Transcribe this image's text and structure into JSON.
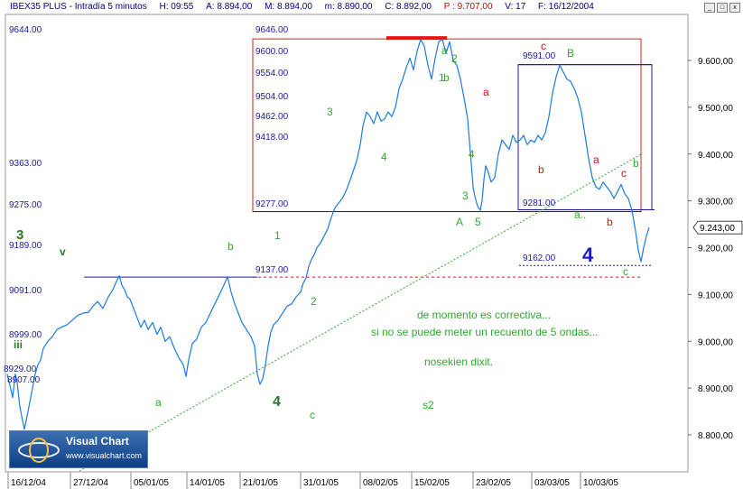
{
  "header": {
    "symbol": "IBEX35 PLUS - Intradía 5 minutos",
    "h": "H: 09:55",
    "a": "A: 8.894,00",
    "m": "M: 8.894,00",
    "mn": "m: 8.890,00",
    "c": "C: 8.892,00",
    "p": "P : 9.707,00",
    "v": "V: 17",
    "f": "F: 16/12/2004"
  },
  "window_buttons": [
    "_",
    "□",
    "x"
  ],
  "logo": {
    "title": "Visual Chart",
    "url": "www.visualchart.com"
  },
  "chart_data": {
    "type": "line",
    "y_ticks": [
      "9.600,00",
      "9.500,00",
      "9.400,00",
      "9.300,00",
      "9.200,00",
      "9.100,00",
      "9.000,00",
      "8.900,00",
      "8.800,00"
    ],
    "x_labels": [
      "16/12/04",
      "27/12/04",
      "05/01/05",
      "14/01/05",
      "21/01/05",
      "31/01/05",
      "08/02/05",
      "15/02/05",
      "23/02/05",
      "03/03/05",
      "10/03/05"
    ],
    "last_price": "9.243,00",
    "ylim": [
      8730,
      9690
    ],
    "series": [
      {
        "color": "#1c7ae0",
        "values": [
          [
            0,
            8930
          ],
          [
            3,
            8905
          ],
          [
            6,
            8880
          ],
          [
            9,
            8930
          ],
          [
            11,
            8912
          ],
          [
            14,
            8860
          ],
          [
            17,
            8830
          ],
          [
            19,
            8812
          ],
          [
            22,
            8840
          ],
          [
            25,
            8870
          ],
          [
            28,
            8900
          ],
          [
            31,
            8930
          ],
          [
            34,
            8950
          ],
          [
            37,
            8960
          ],
          [
            40,
            8985
          ],
          [
            45,
            9000
          ],
          [
            50,
            9010
          ],
          [
            55,
            9025
          ],
          [
            60,
            9030
          ],
          [
            66,
            9035
          ],
          [
            72,
            9045
          ],
          [
            78,
            9055
          ],
          [
            84,
            9060
          ],
          [
            90,
            9062
          ],
          [
            95,
            9075
          ],
          [
            100,
            9085
          ],
          [
            106,
            9070
          ],
          [
            112,
            9095
          ],
          [
            117,
            9110
          ],
          [
            121,
            9128
          ],
          [
            124,
            9140
          ],
          [
            127,
            9120
          ],
          [
            130,
            9110
          ],
          [
            133,
            9095
          ],
          [
            136,
            9090
          ],
          [
            140,
            9070
          ],
          [
            144,
            9050
          ],
          [
            148,
            9030
          ],
          [
            152,
            9045
          ],
          [
            156,
            9025
          ],
          [
            161,
            9040
          ],
          [
            166,
            9015
          ],
          [
            170,
            9030
          ],
          [
            175,
            9000
          ],
          [
            180,
            9010
          ],
          [
            185,
            8985
          ],
          [
            190,
            8965
          ],
          [
            195,
            8950
          ],
          [
            198,
            8925
          ],
          [
            201,
            8960
          ],
          [
            205,
            8995
          ],
          [
            210,
            9005
          ],
          [
            215,
            9030
          ],
          [
            220,
            9040
          ],
          [
            225,
            9060
          ],
          [
            230,
            9080
          ],
          [
            235,
            9100
          ],
          [
            240,
            9120
          ],
          [
            244,
            9138
          ],
          [
            248,
            9105
          ],
          [
            252,
            9080
          ],
          [
            256,
            9060
          ],
          [
            260,
            9040
          ],
          [
            265,
            9025
          ],
          [
            270,
            9010
          ],
          [
            274,
            8990
          ],
          [
            277,
            8930
          ],
          [
            280,
            8908
          ],
          [
            283,
            8920
          ],
          [
            286,
            8950
          ],
          [
            289,
            8990
          ],
          [
            292,
            9020
          ],
          [
            295,
            9035
          ],
          [
            300,
            9045
          ],
          [
            305,
            9060
          ],
          [
            310,
            9075
          ],
          [
            315,
            9080
          ],
          [
            320,
            9095
          ],
          [
            325,
            9105
          ],
          [
            328,
            9125
          ],
          [
            331,
            9135
          ],
          [
            334,
            9160
          ],
          [
            337,
            9175
          ],
          [
            340,
            9185
          ],
          [
            343,
            9200
          ],
          [
            347,
            9210
          ],
          [
            351,
            9225
          ],
          [
            355,
            9240
          ],
          [
            359,
            9265
          ],
          [
            363,
            9285
          ],
          [
            367,
            9295
          ],
          [
            371,
            9305
          ],
          [
            375,
            9320
          ],
          [
            379,
            9340
          ],
          [
            383,
            9362
          ],
          [
            387,
            9385
          ],
          [
            391,
            9420
          ],
          [
            394,
            9460
          ],
          [
            398,
            9490
          ],
          [
            402,
            9480
          ],
          [
            406,
            9465
          ],
          [
            410,
            9490
          ],
          [
            414,
            9470
          ],
          [
            418,
            9475
          ],
          [
            422,
            9490
          ],
          [
            426,
            9480
          ],
          [
            430,
            9500
          ],
          [
            434,
            9540
          ],
          [
            438,
            9560
          ],
          [
            442,
            9585
          ],
          [
            446,
            9605
          ],
          [
            450,
            9580
          ],
          [
            454,
            9620
          ],
          [
            458,
            9645
          ],
          [
            462,
            9630
          ],
          [
            466,
            9590
          ],
          [
            470,
            9560
          ],
          [
            474,
            9605
          ],
          [
            478,
            9640
          ],
          [
            482,
            9645
          ],
          [
            486,
            9615
          ],
          [
            490,
            9640
          ],
          [
            494,
            9600
          ],
          [
            498,
            9590
          ],
          [
            502,
            9560
          ],
          [
            506,
            9520
          ],
          [
            510,
            9475
          ],
          [
            514,
            9380
          ],
          [
            516,
            9330
          ],
          [
            518,
            9310
          ],
          [
            520,
            9295
          ],
          [
            522,
            9285
          ],
          [
            524,
            9280
          ],
          [
            526,
            9300
          ],
          [
            528,
            9345
          ],
          [
            530,
            9375
          ],
          [
            533,
            9360
          ],
          [
            536,
            9340
          ],
          [
            540,
            9350
          ],
          [
            544,
            9400
          ],
          [
            548,
            9430
          ],
          [
            552,
            9420
          ],
          [
            556,
            9410
          ],
          [
            560,
            9440
          ],
          [
            564,
            9425
          ],
          [
            568,
            9430
          ],
          [
            572,
            9440
          ],
          [
            576,
            9420
          ],
          [
            580,
            9430
          ],
          [
            584,
            9425
          ],
          [
            588,
            9440
          ],
          [
            592,
            9430
          ],
          [
            596,
            9445
          ],
          [
            600,
            9480
          ],
          [
            604,
            9530
          ],
          [
            608,
            9565
          ],
          [
            612,
            9590
          ],
          [
            616,
            9575
          ],
          [
            620,
            9560
          ],
          [
            624,
            9555
          ],
          [
            628,
            9540
          ],
          [
            632,
            9520
          ],
          [
            636,
            9490
          ],
          [
            640,
            9440
          ],
          [
            644,
            9390
          ],
          [
            648,
            9350
          ],
          [
            652,
            9330
          ],
          [
            656,
            9325
          ],
          [
            660,
            9340
          ],
          [
            664,
            9330
          ],
          [
            668,
            9320
          ],
          [
            672,
            9305
          ],
          [
            676,
            9320
          ],
          [
            680,
            9335
          ],
          [
            684,
            9315
          ],
          [
            688,
            9305
          ],
          [
            692,
            9280
          ],
          [
            696,
            9235
          ],
          [
            699,
            9195
          ],
          [
            702,
            9170
          ],
          [
            705,
            9200
          ],
          [
            708,
            9225
          ],
          [
            711,
            9243
          ]
        ]
      }
    ],
    "left_levels": [
      "9644.00",
      "9363.00",
      "9275.00",
      "9189.00",
      "9091.00",
      "8999.00",
      "8929.00",
      "8907.00"
    ],
    "box_levels": [
      "9646.00",
      "9600.00",
      "9554.00",
      "9504.00",
      "9462.00",
      "9418.00",
      "9277.00"
    ],
    "right_levels": [
      "9591.00",
      "9281.00",
      "9162.00"
    ],
    "mid_level": "9137.00",
    "wave_labels": {
      "green": [
        "1",
        "2",
        "3",
        "4",
        "5",
        "3",
        "4",
        "a",
        "b",
        "c",
        "a",
        "b",
        "1",
        "2",
        "3",
        "4",
        "5",
        "A",
        "B",
        "b",
        "c",
        "a..",
        "s2",
        "c",
        "2",
        "b",
        "a"
      ],
      "red": [
        "a",
        "c",
        "b",
        "a",
        "c",
        "b"
      ],
      "big_green": [
        "3",
        "v",
        "iii",
        "4"
      ],
      "big_blue": "4"
    },
    "annotations": [
      "de momento es correctiva...",
      "si no se puede meter un recuento de 5 ondas...",
      "nosekien dixit."
    ]
  }
}
